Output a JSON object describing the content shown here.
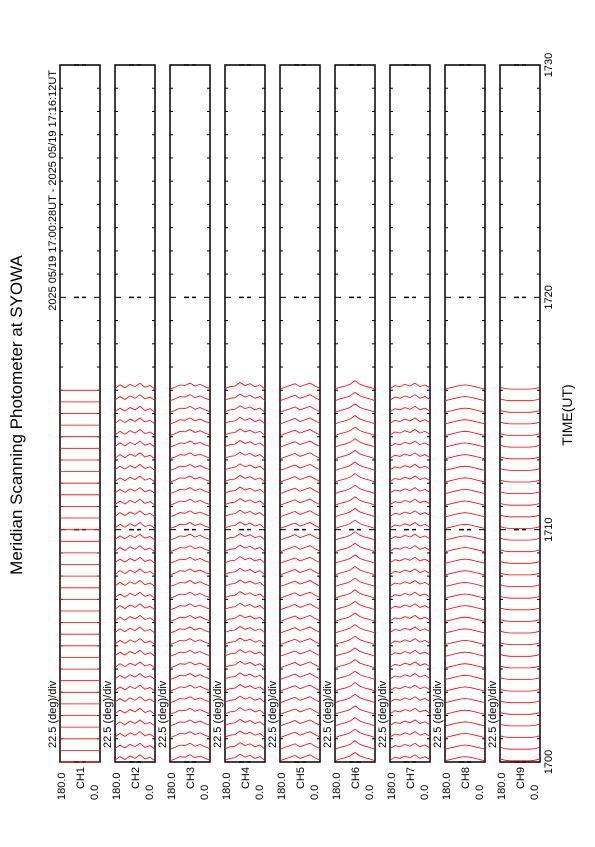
{
  "chart_data": {
    "type": "line",
    "title": "Meridian Scanning Photometer at SYOWA",
    "period": "2025 05/19 17:00:28UT - 2025 05/19 17:16:12UT",
    "xlabel": "TIME(UT)",
    "xlim": [
      1700,
      1730
    ],
    "xticks": [
      1700,
      1710,
      1720,
      1730
    ],
    "anglelim": [
      0,
      180
    ],
    "angleticks": [
      {
        "value": 180,
        "label": "180.0"
      },
      {
        "value": 0,
        "label": "0.0"
      }
    ],
    "scale_label": "22.5 (deg)/div",
    "color": "#ff0000",
    "angles": [
      0,
      22.5,
      45,
      67.5,
      90,
      112.5,
      135,
      157.5,
      180
    ],
    "scan_times": [
      1700,
      1700.5,
      1701,
      1701.5,
      1702,
      1702.5,
      1703,
      1703.5,
      1704,
      1704.5,
      1705,
      1705.5,
      1706,
      1706.5,
      1707,
      1707.5,
      1708,
      1708.5,
      1709,
      1709.5,
      1710,
      1710.5,
      1711,
      1711.5,
      1712,
      1712.5,
      1713,
      1713.5,
      1714,
      1714.5,
      1715,
      1715.5,
      1716
    ],
    "panels": [
      {
        "name": "CH1",
        "profile": [
          0,
          0,
          0,
          0,
          0,
          0,
          0,
          0,
          0
        ]
      },
      {
        "name": "CH2",
        "profile": [
          2,
          8,
          5,
          12,
          6,
          10,
          4,
          9,
          3
        ]
      },
      {
        "name": "CH3",
        "profile": [
          3,
          6,
          10,
          7,
          12,
          8,
          9,
          5,
          2
        ]
      },
      {
        "name": "CH4",
        "profile": [
          2,
          9,
          6,
          11,
          8,
          13,
          7,
          6,
          3
        ]
      },
      {
        "name": "CH5",
        "profile": [
          3,
          7,
          12,
          9,
          6,
          11,
          8,
          5,
          2
        ]
      },
      {
        "name": "CH6",
        "profile": [
          2,
          5,
          7,
          10,
          16,
          10,
          7,
          5,
          2
        ]
      },
      {
        "name": "CH7",
        "profile": [
          4,
          9,
          6,
          12,
          7,
          10,
          6,
          8,
          3
        ]
      },
      {
        "name": "CH8",
        "profile": [
          2,
          4,
          6,
          8,
          9,
          8,
          6,
          4,
          2
        ]
      },
      {
        "name": "CH9",
        "profile": [
          5,
          3,
          2,
          2,
          2,
          2,
          2,
          3,
          5
        ]
      }
    ]
  }
}
